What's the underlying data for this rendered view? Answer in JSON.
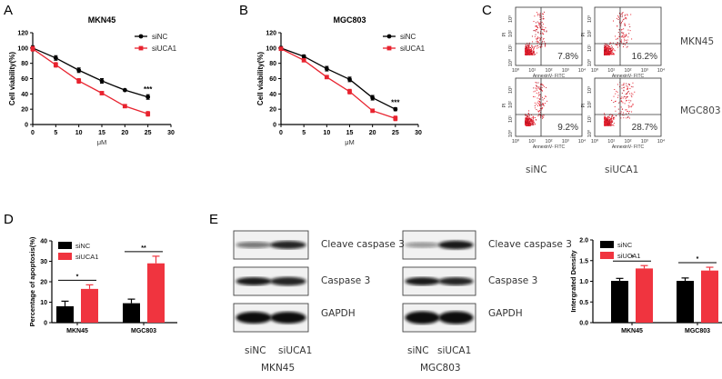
{
  "panels": {
    "A": {
      "letter": "A"
    },
    "B": {
      "letter": "B"
    },
    "C": {
      "letter": "C"
    },
    "D": {
      "letter": "D"
    },
    "E": {
      "letter": "E"
    }
  },
  "flow": {
    "row_labels": [
      "MKN45",
      "MGC803"
    ],
    "col_labels": [
      "siNC",
      "siUCA1"
    ],
    "x_axis_label": "AnnexinV- FITC",
    "y_axis_label": "PI",
    "percentages": [
      [
        "7.8%",
        "16.2%"
      ],
      [
        "9.2%",
        "28.7%"
      ]
    ]
  },
  "western": {
    "bands": [
      "Cleave caspase 3",
      "Caspase 3",
      "GAPDH"
    ],
    "lanes": [
      "siNC",
      "siUCA1"
    ],
    "groups": [
      "MKN45",
      "MGC803"
    ]
  },
  "chart_data": [
    {
      "id": "A",
      "type": "line",
      "title": "MKN45",
      "xlabel": "μM",
      "ylabel": "Cell viability(%)",
      "x": [
        0,
        5,
        10,
        15,
        20,
        25
      ],
      "xlim": [
        0,
        30
      ],
      "ylim": [
        0,
        120
      ],
      "xticks": [
        0,
        5,
        10,
        15,
        20,
        25,
        30
      ],
      "yticks": [
        0,
        20,
        40,
        60,
        80,
        100,
        120
      ],
      "series": [
        {
          "name": "siNC",
          "color": "#000000",
          "values": [
            100,
            87,
            71,
            57,
            45,
            36
          ],
          "errors": [
            3,
            3,
            3,
            3,
            1,
            3
          ]
        },
        {
          "name": "siUCA1",
          "color": "#e8232f",
          "values": [
            99,
            78,
            57,
            41,
            24,
            14
          ],
          "errors": [
            3,
            3,
            3,
            2,
            2,
            3
          ]
        }
      ],
      "annotations": [
        {
          "x": 25,
          "text": "***"
        }
      ],
      "legend_position": "upper right",
      "grid": false
    },
    {
      "id": "B",
      "type": "line",
      "title": "MGC803",
      "xlabel": "μM",
      "ylabel": "Cell viability(%)",
      "x": [
        0,
        5,
        10,
        15,
        20,
        25
      ],
      "xlim": [
        0,
        30
      ],
      "ylim": [
        0,
        120
      ],
      "xticks": [
        0,
        5,
        10,
        15,
        20,
        25,
        30
      ],
      "yticks": [
        0,
        20,
        40,
        60,
        80,
        100,
        120
      ],
      "series": [
        {
          "name": "siNC",
          "color": "#000000",
          "values": [
            100,
            89,
            73,
            59,
            35,
            20
          ],
          "errors": [
            2,
            2,
            3,
            3,
            3,
            2
          ]
        },
        {
          "name": "siUCA1",
          "color": "#e8232f",
          "values": [
            99,
            84,
            62,
            43,
            18,
            8
          ],
          "errors": [
            2,
            2,
            2,
            3,
            2,
            3
          ]
        }
      ],
      "annotations": [
        {
          "x": 25,
          "text": "***"
        }
      ],
      "legend_position": "upper right",
      "grid": false
    },
    {
      "id": "D",
      "type": "bar",
      "title": "",
      "xlabel": "",
      "ylabel": "Percentage of apoptosis(%)",
      "categories": [
        "MKN45",
        "MGC803"
      ],
      "ylim": [
        0,
        40
      ],
      "yticks": [
        0,
        10,
        20,
        30,
        40
      ],
      "series": [
        {
          "name": "siNC",
          "color": "#000000",
          "values": [
            8,
            9.5
          ],
          "errors": [
            2.5,
            2
          ]
        },
        {
          "name": "siUCA1",
          "color": "#f0343f",
          "values": [
            16.5,
            29
          ],
          "errors": [
            2,
            3.5
          ]
        }
      ],
      "annotations": [
        {
          "category": "MKN45",
          "text": "*"
        },
        {
          "category": "MGC803",
          "text": "**"
        }
      ],
      "legend_position": "upper left",
      "grid": false
    },
    {
      "id": "E",
      "type": "bar",
      "title": "",
      "xlabel": "",
      "ylabel": "Intergrated Density",
      "categories": [
        "MKN45",
        "MGC803"
      ],
      "ylim": [
        0,
        2.0
      ],
      "yticks": [
        "0.0",
        "0.5",
        "1.0",
        "1.5",
        "2.0"
      ],
      "series": [
        {
          "name": "siNC",
          "color": "#000000",
          "values": [
            1.01,
            1.01
          ],
          "errors": [
            0.06,
            0.07
          ]
        },
        {
          "name": "siUCA1",
          "color": "#f0343f",
          "values": [
            1.31,
            1.26
          ],
          "errors": [
            0.07,
            0.08
          ]
        }
      ],
      "annotations": [
        {
          "category": "MKN45",
          "text": "*"
        },
        {
          "category": "MGC803",
          "text": "*"
        }
      ],
      "legend_position": "upper left",
      "grid": false
    }
  ]
}
